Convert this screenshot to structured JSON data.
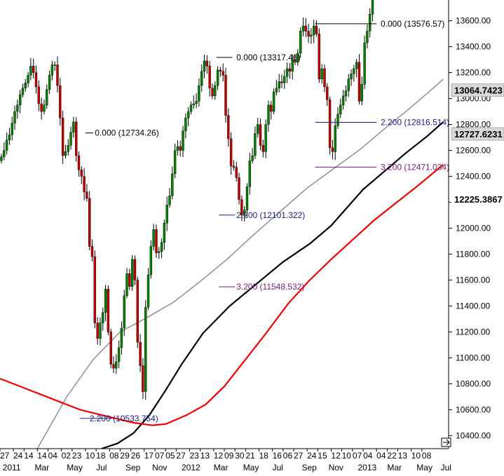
{
  "chart_data": {
    "type": "candlestick",
    "title": "",
    "xlabel": "",
    "ylabel": "",
    "ylim": [
      10300,
      13760
    ],
    "grid": false,
    "legend": "none",
    "colors": {
      "up_candle": "#008000",
      "down_candle": "#c00000",
      "candle_wick": "#000000",
      "ma_gray": "#909090",
      "ma_black": "#000000",
      "ma_red": "#ee0000",
      "fib_blue_text": "#1a237e",
      "fib_purple_text": "#7b1a7b",
      "fib_black_text": "#000000",
      "fib_blue_line": "#1a237e",
      "fib_purple_line": "#7b1a7b"
    },
    "y_ticks": [
      10400,
      10600,
      10800,
      11000,
      11200,
      11400,
      11600,
      11800,
      12000,
      12200,
      12400,
      12600,
      12800,
      13000,
      13200,
      13400,
      13600
    ],
    "y_tick_labels": [
      "10400.00",
      "10600.00",
      "10800.00",
      "11000.00",
      "11200.00",
      "11400.00",
      "11600.00",
      "11800.00",
      "12000.00",
      "12200.00",
      "12400.00",
      "12600.00",
      "12800.00",
      "13000.00",
      "13200.00",
      "13400.00",
      "13600.00"
    ],
    "y_value_markers": [
      {
        "label": "13064.7423",
        "value": 13064.74,
        "style": "gray"
      },
      {
        "label": "12727.6231",
        "value": 12727.62,
        "style": "gray"
      },
      {
        "label": "12225.3867",
        "value": 12225.39,
        "style": "white"
      }
    ],
    "x_tick_top": [
      "27",
      "24",
      "14",
      "14",
      "04",
      "02",
      "23",
      "10",
      "18",
      "08",
      "29",
      "26",
      "17",
      "07",
      "05",
      "27",
      "23",
      "13",
      "12",
      "09",
      "30",
      "21",
      "18",
      "16",
      "06",
      "27",
      "24",
      "15",
      "12",
      "10",
      "07",
      "04",
      "04",
      "22",
      "13",
      "10",
      "08"
    ],
    "x_tick_top_index": [
      0,
      5,
      9,
      14,
      18,
      23,
      27,
      32,
      36,
      41,
      45,
      49,
      54,
      58,
      62,
      66,
      71,
      75,
      80,
      84,
      88,
      92,
      97,
      102,
      106,
      110,
      115,
      119,
      124,
      128,
      132,
      136,
      141,
      145,
      149,
      154,
      158
    ],
    "x_tick_bottom": [
      "2011",
      "Mar",
      "May",
      "Jul",
      "Sep",
      "Nov",
      "2012",
      "Mar",
      "May",
      "Jul",
      "Sep",
      "Nov",
      "2013",
      "Mar",
      "May",
      "Jul"
    ],
    "x_tick_bottom_index": [
      1,
      13,
      25,
      36,
      47,
      57,
      68,
      80,
      91,
      102,
      113,
      123,
      134,
      145,
      156,
      165
    ],
    "x_index_max": 168,
    "fib_levels": [
      {
        "label": "0.000 (12734.26)",
        "value": 12734.26,
        "x_start": 32,
        "x_end": 35,
        "text_index": 35,
        "style": "black"
      },
      {
        "label": "2.200 (10533.754)",
        "value": 10533.754,
        "x_start": 30,
        "x_end": 42,
        "text_index": 33,
        "style": "blue"
      },
      {
        "label": "0.000 (13317.46)",
        "value": 13317.46,
        "x_start": 81,
        "x_end": 87,
        "text_index": 88,
        "style": "black"
      },
      {
        "label": "2.200 (12101.322)",
        "value": 12101.322,
        "x_start": 82,
        "x_end": 88,
        "text_index": 88,
        "style": "blue"
      },
      {
        "label": "3.200 (11548.532)",
        "value": 11548.532,
        "x_start": 82,
        "x_end": 88,
        "text_index": 88,
        "style": "purple"
      },
      {
        "label": "0.000 (13576.57)",
        "value": 13576.57,
        "x_start": 118,
        "x_end": 141,
        "text_index": 142,
        "style": "black"
      },
      {
        "label": "2.200 (12816.514)",
        "value": 12816.514,
        "x_start": 118,
        "x_end": 141,
        "text_index": 142,
        "style": "blue"
      },
      {
        "label": "3.200 (12471.034)",
        "value": 12471.034,
        "x_start": 118,
        "x_end": 141,
        "text_index": 142,
        "style": "purple"
      }
    ],
    "close_series": [
      12550,
      12600,
      12680,
      12720,
      12810,
      12900,
      12950,
      13030,
      13080,
      13120,
      13180,
      13250,
      13200,
      13090,
      12960,
      12900,
      12950,
      13070,
      13180,
      13260,
      13260,
      13100,
      12850,
      12560,
      12590,
      12640,
      12740,
      12820,
      12560,
      12450,
      12400,
      12280,
      12230,
      11860,
      11780,
      11270,
      11150,
      11270,
      11350,
      11530,
      11200,
      10950,
      10920,
      10970,
      11080,
      11230,
      11480,
      11650,
      11550,
      11760,
      11600,
      11120,
      10940,
      10740,
      11390,
      11640,
      11860,
      11990,
      11810,
      11820,
      11890,
      12040,
      12180,
      12250,
      12420,
      12600,
      12630,
      12600,
      12750,
      12850,
      12900,
      12950,
      12960,
      12980,
      13100,
      13210,
      13290,
      13250,
      13080,
      13020,
      13100,
      13220,
      13210,
      13180,
      12870,
      12690,
      12480,
      12470,
      12390,
      12220,
      12100,
      12140,
      12320,
      12520,
      12560,
      12730,
      12800,
      12640,
      12590,
      12800,
      12950,
      12900,
      13050,
      13080,
      13130,
      13120,
      13170,
      13230,
      13210,
      13300,
      13280,
      13350,
      13520,
      13560,
      13520,
      13480,
      13490,
      13560,
      13500,
      13150,
      13230,
      13090,
      12990,
      12620,
      12590,
      12790,
      12880,
      12950,
      13020,
      13060,
      13150,
      13190,
      13230,
      13280,
      12980,
      13110,
      13430,
      13520,
      13650,
      13760
    ],
    "moving_averages": [
      {
        "style": "gray",
        "points": [
          [
            14,
            10300
          ],
          [
            25,
            10700
          ],
          [
            35,
            10990
          ],
          [
            45,
            11200
          ],
          [
            55,
            11310
          ],
          [
            65,
            11430
          ],
          [
            75,
            11590
          ],
          [
            85,
            11760
          ],
          [
            95,
            11950
          ],
          [
            105,
            12130
          ],
          [
            115,
            12310
          ],
          [
            125,
            12460
          ],
          [
            135,
            12610
          ],
          [
            143,
            12750
          ],
          [
            152,
            12900
          ],
          [
            160,
            13040
          ],
          [
            166,
            13150
          ]
        ]
      },
      {
        "style": "black",
        "points": [
          [
            38,
            10300
          ],
          [
            44,
            10340
          ],
          [
            50,
            10420
          ],
          [
            56,
            10560
          ],
          [
            62,
            10750
          ],
          [
            68,
            10950
          ],
          [
            76,
            11190
          ],
          [
            86,
            11400
          ],
          [
            96,
            11570
          ],
          [
            106,
            11740
          ],
          [
            116,
            11880
          ],
          [
            124,
            12020
          ],
          [
            130,
            12160
          ],
          [
            136,
            12300
          ],
          [
            144,
            12440
          ],
          [
            152,
            12580
          ],
          [
            160,
            12710
          ],
          [
            166,
            12820
          ]
        ]
      },
      {
        "style": "red",
        "points": [
          [
            0,
            10840
          ],
          [
            10,
            10760
          ],
          [
            20,
            10680
          ],
          [
            30,
            10600
          ],
          [
            40,
            10550
          ],
          [
            50,
            10500
          ],
          [
            57,
            10480
          ],
          [
            62,
            10490
          ],
          [
            70,
            10560
          ],
          [
            77,
            10640
          ],
          [
            84,
            10780
          ],
          [
            92,
            10990
          ],
          [
            100,
            11200
          ],
          [
            108,
            11420
          ],
          [
            116,
            11600
          ],
          [
            124,
            11760
          ],
          [
            132,
            11910
          ],
          [
            140,
            12060
          ],
          [
            148,
            12190
          ],
          [
            156,
            12320
          ],
          [
            163,
            12440
          ],
          [
            166,
            12490
          ]
        ]
      }
    ]
  }
}
